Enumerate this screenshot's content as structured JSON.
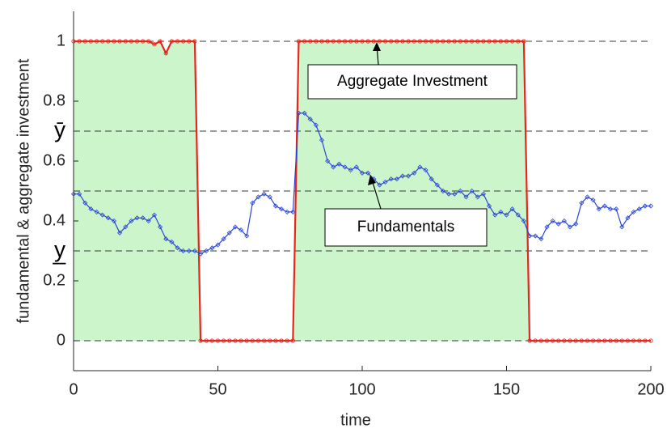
{
  "chart_data": {
    "type": "line",
    "xlabel": "time",
    "ylabel": "fundamental & aggregate investment",
    "xlim": [
      0,
      200
    ],
    "ylim": [
      -0.1,
      1.1
    ],
    "xticks": [
      0,
      50,
      100,
      150,
      200
    ],
    "yticks": [
      0,
      0.2,
      0.4,
      0.6,
      0.8,
      1
    ],
    "reference_lines": [
      0,
      0.3,
      0.5,
      0.7,
      1
    ],
    "threshold_labels": [
      {
        "value": 0.7,
        "label": "ȳ"
      },
      {
        "value": 0.3,
        "label": "y̲"
      }
    ],
    "shade_color": "#ccf5cc",
    "x": [
      0,
      2,
      4,
      6,
      8,
      10,
      12,
      14,
      16,
      18,
      20,
      22,
      24,
      26,
      28,
      30,
      32,
      34,
      36,
      38,
      40,
      42,
      44,
      46,
      48,
      50,
      52,
      54,
      56,
      58,
      60,
      62,
      64,
      66,
      68,
      70,
      72,
      74,
      76,
      78,
      80,
      82,
      84,
      86,
      88,
      90,
      92,
      94,
      96,
      98,
      100,
      102,
      104,
      106,
      108,
      110,
      112,
      114,
      116,
      118,
      120,
      122,
      124,
      126,
      128,
      130,
      132,
      134,
      136,
      138,
      140,
      142,
      144,
      146,
      148,
      150,
      152,
      154,
      156,
      158,
      160,
      162,
      164,
      166,
      168,
      170,
      172,
      174,
      176,
      178,
      180,
      182,
      184,
      186,
      188,
      190,
      192,
      194,
      196,
      198,
      200
    ],
    "series": [
      {
        "name": "Aggregate Investment",
        "color": "#e8261c",
        "marker": "circle",
        "values": [
          1,
          1,
          1,
          1,
          1,
          1,
          1,
          1,
          1,
          1,
          1,
          1,
          1,
          1,
          0.99,
          1,
          0.96,
          1,
          1,
          1,
          1,
          1,
          0,
          0,
          0,
          0,
          0,
          0,
          0,
          0,
          0,
          0,
          0,
          0,
          0,
          0,
          0,
          0,
          0,
          1,
          1,
          1,
          1,
          1,
          1,
          1,
          1,
          1,
          1,
          1,
          1,
          1,
          1,
          1,
          1,
          1,
          1,
          1,
          1,
          1,
          1,
          1,
          1,
          1,
          1,
          1,
          1,
          1,
          1,
          1,
          1,
          1,
          1,
          1,
          1,
          1,
          1,
          1,
          1,
          0,
          0,
          0,
          0,
          0,
          0,
          0,
          0,
          0,
          0,
          0,
          0,
          0,
          0,
          0,
          0,
          0,
          0,
          0,
          0,
          0,
          0
        ]
      },
      {
        "name": "Fundamentals",
        "color": "#2a45d6",
        "marker": "diamond",
        "values": [
          0.49,
          0.49,
          0.46,
          0.44,
          0.43,
          0.42,
          0.41,
          0.4,
          0.36,
          0.38,
          0.4,
          0.41,
          0.41,
          0.4,
          0.42,
          0.38,
          0.34,
          0.33,
          0.31,
          0.3,
          0.3,
          0.3,
          0.29,
          0.3,
          0.31,
          0.32,
          0.34,
          0.36,
          0.38,
          0.37,
          0.35,
          0.46,
          0.48,
          0.49,
          0.48,
          0.45,
          0.44,
          0.43,
          0.43,
          0.76,
          0.76,
          0.74,
          0.72,
          0.67,
          0.6,
          0.58,
          0.59,
          0.58,
          0.57,
          0.58,
          0.56,
          0.56,
          0.54,
          0.52,
          0.53,
          0.54,
          0.54,
          0.55,
          0.55,
          0.56,
          0.58,
          0.57,
          0.54,
          0.52,
          0.5,
          0.49,
          0.49,
          0.5,
          0.48,
          0.5,
          0.48,
          0.49,
          0.45,
          0.42,
          0.43,
          0.42,
          0.44,
          0.42,
          0.4,
          0.35,
          0.35,
          0.34,
          0.38,
          0.4,
          0.39,
          0.4,
          0.38,
          0.39,
          0.46,
          0.48,
          0.47,
          0.44,
          0.45,
          0.44,
          0.44,
          0.38,
          0.41,
          0.43,
          0.44,
          0.45,
          0.45
        ]
      }
    ]
  }
}
